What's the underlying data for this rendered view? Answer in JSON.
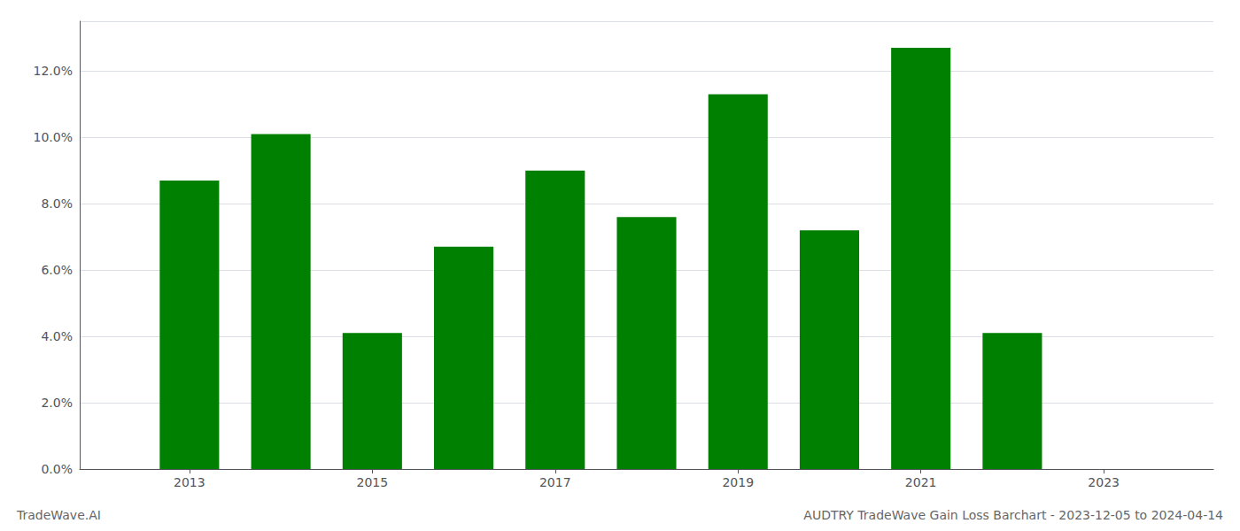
{
  "chart_data": {
    "type": "bar",
    "title": "AUDTRY TradeWave Gain Loss Barchart - 2023-12-05 to 2024-04-14",
    "annotations": [
      "TradeWave.AI"
    ],
    "x": [
      2013,
      2014,
      2015,
      2016,
      2017,
      2018,
      2019,
      2020,
      2021,
      2022,
      2023
    ],
    "values": [
      0.087,
      0.101,
      0.041,
      0.067,
      0.09,
      0.076,
      0.113,
      0.072,
      0.127,
      0.041,
      null
    ],
    "color": "#008000",
    "xlim": [
      2011.8,
      2024.2
    ],
    "xticks": [
      2013,
      2015,
      2017,
      2019,
      2021,
      2023
    ],
    "ylim": [
      0,
      0.135
    ],
    "yticks": [
      {
        "value": 0.0,
        "label": "0.0%"
      },
      {
        "value": 0.02,
        "label": "2.0%"
      },
      {
        "value": 0.04,
        "label": "4.0%"
      },
      {
        "value": 0.06,
        "label": "6.0%"
      },
      {
        "value": 0.08,
        "label": "8.0%"
      },
      {
        "value": 0.1,
        "label": "10.0%"
      },
      {
        "value": 0.12,
        "label": "12.0%"
      }
    ],
    "grid": true
  }
}
